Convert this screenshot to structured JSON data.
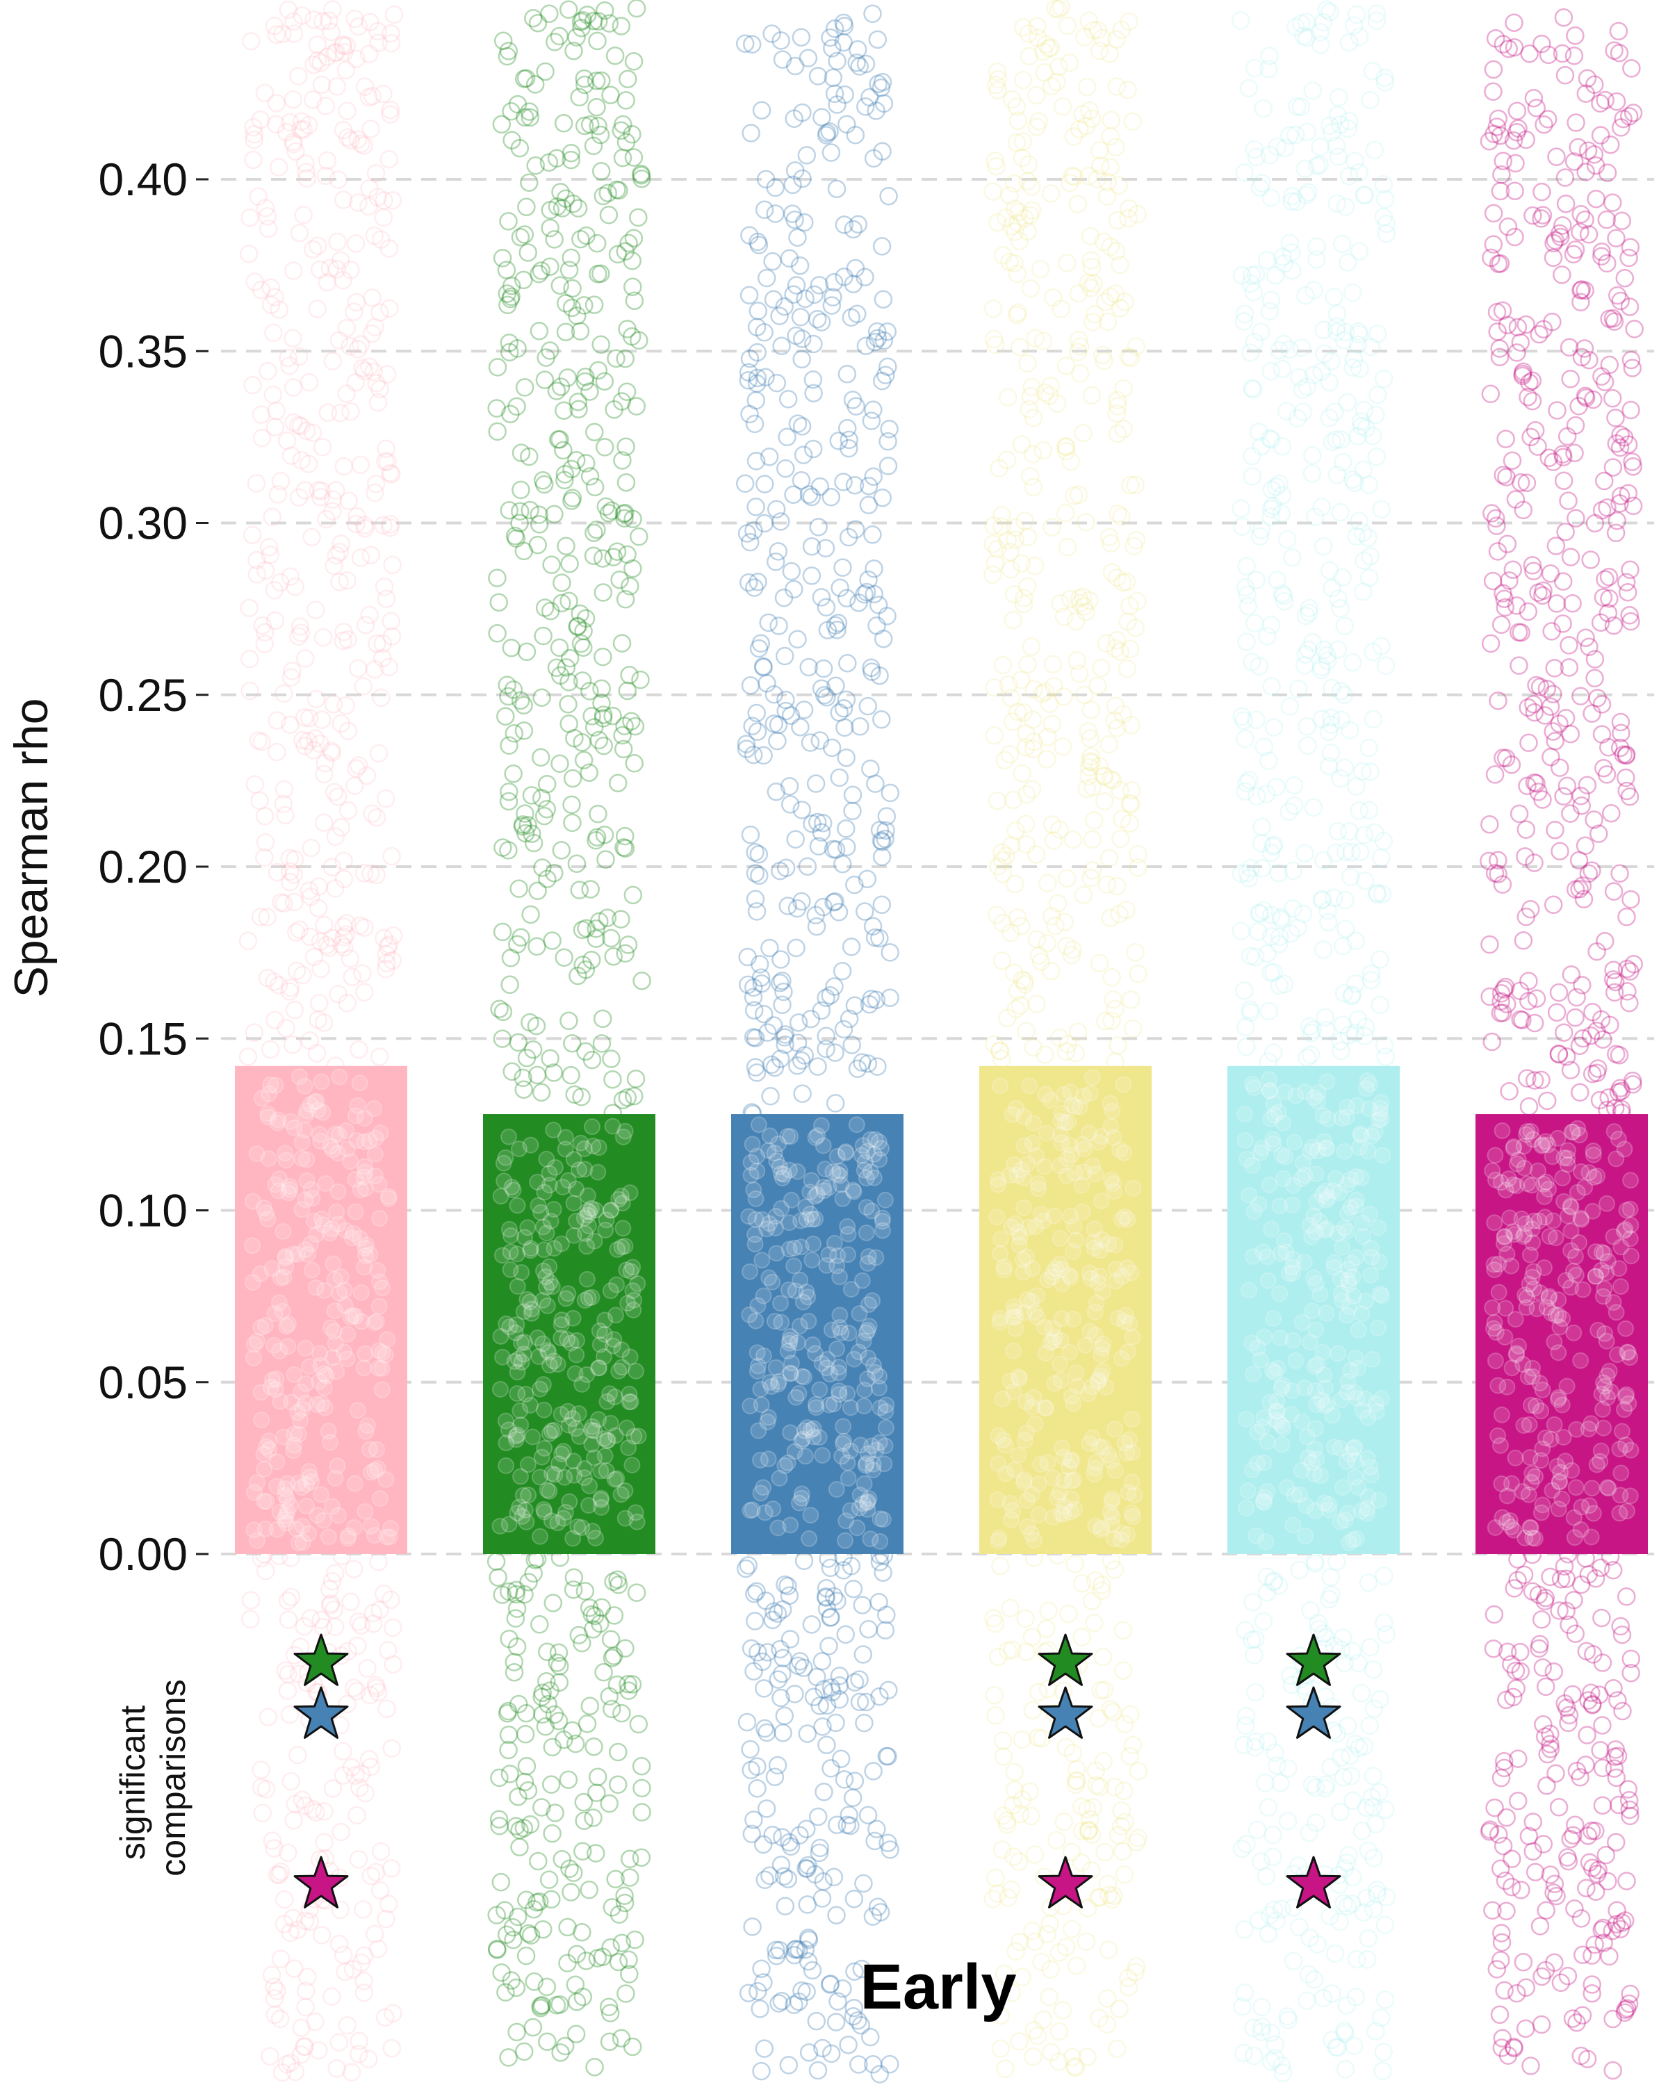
{
  "chart_data": {
    "type": "bar",
    "xlabel": "Early",
    "ylabel": "Spearman rho",
    "sig_label_lines": [
      "significant",
      "comparisons"
    ],
    "ylim": [
      0.0,
      0.42
    ],
    "yticks": [
      0.0,
      0.05,
      0.1,
      0.15,
      0.2,
      0.25,
      0.3,
      0.35,
      0.4
    ],
    "ytick_labels": [
      "0.00",
      "0.05",
      "0.10",
      "0.15",
      "0.20",
      "0.25",
      "0.30",
      "0.35",
      "0.40"
    ],
    "grid": true,
    "groups": [
      {
        "color": "#ffb6c1",
        "value": 0.142,
        "points_alpha": 0.25
      },
      {
        "color": "#228b22",
        "value": 0.128,
        "points_alpha": 0.35
      },
      {
        "color": "#4682b4",
        "value": 0.128,
        "points_alpha": 0.35
      },
      {
        "color": "#f0e68c",
        "value": 0.142,
        "points_alpha": 0.25
      },
      {
        "color": "#aeeeee",
        "value": 0.142,
        "points_alpha": 0.25
      },
      {
        "color": "#c71585",
        "value": 0.128,
        "points_alpha": 0.35
      }
    ],
    "significant_comparisons": [
      {
        "group": 0,
        "stars": [
          "#228b22",
          "#4682b4",
          "#c71585"
        ]
      },
      {
        "group": 3,
        "stars": [
          "#228b22",
          "#4682b4",
          "#c71585"
        ]
      },
      {
        "group": 4,
        "stars": [
          "#228b22",
          "#4682b4",
          "#c71585"
        ]
      }
    ]
  }
}
